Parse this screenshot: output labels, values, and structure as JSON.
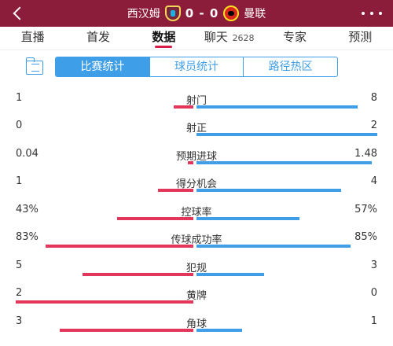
{
  "header": {
    "home_team": "西汉姆",
    "score": "0 - 0",
    "away_team": "曼联"
  },
  "tabs": [
    {
      "label": "直播"
    },
    {
      "label": "首发"
    },
    {
      "label": "数据",
      "active": true
    },
    {
      "label": "聊天",
      "count": "2628"
    },
    {
      "label": "专家"
    },
    {
      "label": "预测"
    }
  ],
  "segment": {
    "items": [
      "比赛统计",
      "球员统计",
      "路径热区"
    ],
    "active_index": 0
  },
  "colors": {
    "header_bg": "#8b1d3a",
    "home_bar": "#e2365a",
    "away_bar": "#3f9ee8"
  },
  "stats": [
    {
      "label": "射门",
      "home": "1",
      "away": "8",
      "home_share": 0.11,
      "away_share": 0.89
    },
    {
      "label": "射正",
      "home": "0",
      "away": "2",
      "home_share": 0.0,
      "away_share": 1.0
    },
    {
      "label": "预期进球",
      "home": "0.04",
      "away": "1.48",
      "home_share": 0.03,
      "away_share": 0.97
    },
    {
      "label": "得分机会",
      "home": "1",
      "away": "4",
      "home_share": 0.2,
      "away_share": 0.8
    },
    {
      "label": "控球率",
      "home": "43%",
      "away": "57%",
      "home_share": 0.43,
      "away_share": 0.57
    },
    {
      "label": "传球成功率",
      "home": "83%",
      "away": "85%",
      "home_share": 0.83,
      "away_share": 0.85
    },
    {
      "label": "犯规",
      "home": "5",
      "away": "3",
      "home_share": 0.625,
      "away_share": 0.375
    },
    {
      "label": "黄牌",
      "home": "2",
      "away": "0",
      "home_share": 1.0,
      "away_share": 0.0
    },
    {
      "label": "角球",
      "home": "3",
      "away": "1",
      "home_share": 0.75,
      "away_share": 0.25
    }
  ]
}
